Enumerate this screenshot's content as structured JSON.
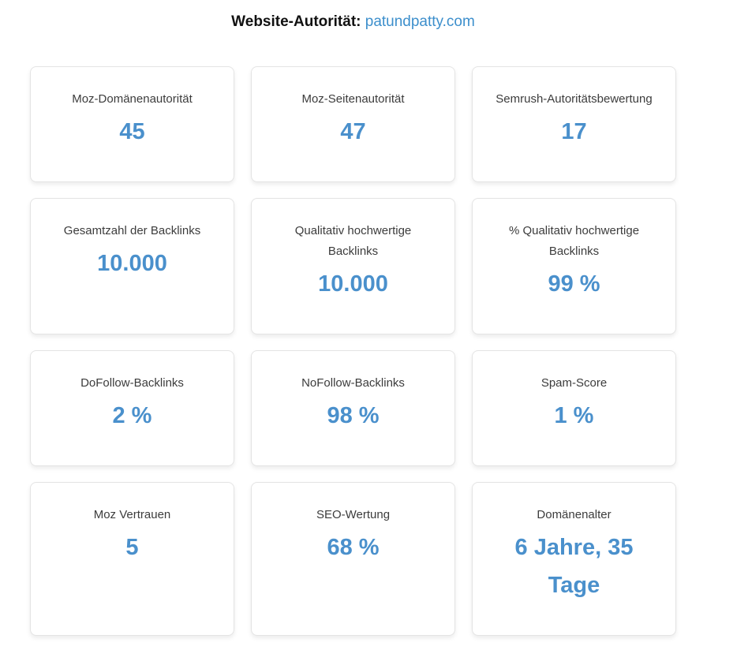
{
  "header": {
    "label": "Website-Autorität:",
    "domain": "patundpatty.com",
    "accent_color": "#3d8fcc"
  },
  "metrics": [
    {
      "label": "Moz-Domänenautorität",
      "value": "45"
    },
    {
      "label": "Moz-Seitenautorität",
      "value": "47"
    },
    {
      "label": "Semrush-Autoritätsbewertung",
      "value": "17"
    },
    {
      "label": "Gesamtzahl der Backlinks",
      "value": "10.000"
    },
    {
      "label": "Qualitativ hochwertige Backlinks",
      "value": "10.000"
    },
    {
      "label": "% Qualitativ hochwertige Backlinks",
      "value": "99 %"
    },
    {
      "label": "DoFollow-Backlinks",
      "value": "2 %"
    },
    {
      "label": "NoFollow-Backlinks",
      "value": "98 %"
    },
    {
      "label": "Spam-Score",
      "value": "1 %"
    },
    {
      "label": "Moz Vertrauen",
      "value": "5"
    },
    {
      "label": "SEO-Wertung",
      "value": "68 %"
    },
    {
      "label": "Domänenalter",
      "value": "6 Jahre, 35 Tage"
    }
  ],
  "colors": {
    "value": "#4a90cc",
    "label": "#3c3c3c",
    "card_border": "#e4e4e4"
  }
}
